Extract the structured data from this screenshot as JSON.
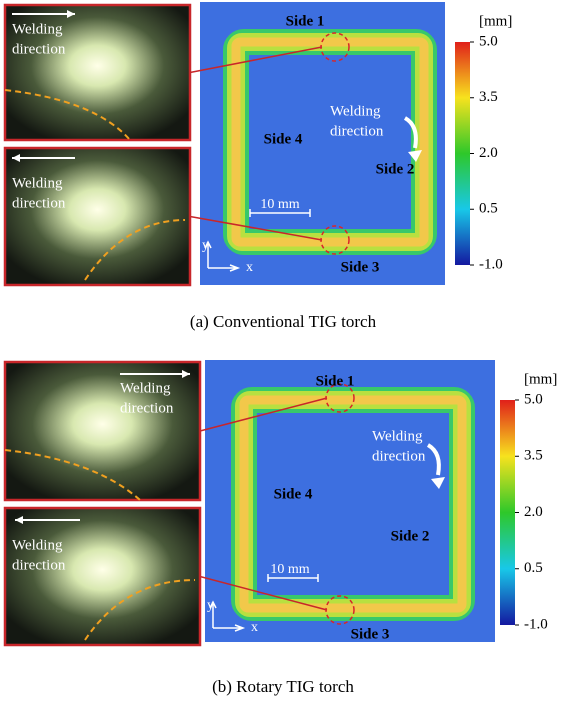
{
  "panels": [
    {
      "caption": "(a) Conventional TIG torch",
      "insets": [
        {
          "label": [
            "Welding",
            "direction"
          ]
        },
        {
          "label": [
            "Welding",
            "direction"
          ]
        }
      ],
      "sides": [
        "Side 1",
        "Side 2",
        "Side 3",
        "Side 4"
      ],
      "map_label": [
        "Welding",
        "direction"
      ],
      "scale_bar": "10 mm",
      "axes": [
        "y",
        "x"
      ],
      "colorbar": {
        "unit": "[mm]",
        "ticks": [
          "5.0",
          "3.5",
          "2.0",
          "0.5",
          "-1.0"
        ]
      }
    },
    {
      "caption": "(b) Rotary TIG torch",
      "insets": [
        {
          "label": [
            "Welding",
            "direction"
          ]
        },
        {
          "label": [
            "Welding",
            "direction"
          ]
        }
      ],
      "sides": [
        "Side 1",
        "Side 2",
        "Side 3",
        "Side 4"
      ],
      "map_label": [
        "Welding",
        "direction"
      ],
      "scale_bar": "10 mm",
      "axes": [
        "y",
        "x"
      ],
      "colorbar": {
        "unit": "[mm]",
        "ticks": [
          "5.0",
          "3.5",
          "2.0",
          "0.5",
          "-1.0"
        ]
      }
    }
  ]
}
